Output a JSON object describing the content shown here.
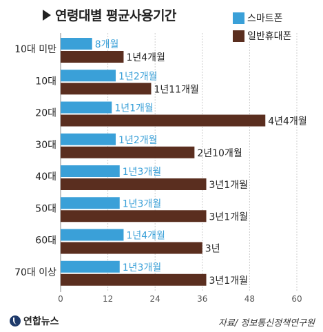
{
  "title": "연령대별 평균사용기간",
  "colors": {
    "smartphone": "#3aa0d8",
    "general": "#5a2e1f",
    "axis": "#888888"
  },
  "footer": {
    "logo_text": "연합뉴스",
    "source": "자료/ 정보통신정책연구원"
  },
  "chart_data": {
    "type": "bar",
    "orientation": "horizontal",
    "unit": "months",
    "categories": [
      "10대 미만",
      "10대",
      "20대",
      "30대",
      "40대",
      "50대",
      "60대",
      "70대 이상"
    ],
    "series": [
      {
        "name": "스마트폰",
        "values": [
          8,
          14,
          13,
          14,
          15,
          15,
          16,
          15
        ],
        "labels": [
          "8개월",
          "1년2개월",
          "1년1개월",
          "1년2개월",
          "1년3개월",
          "1년3개월",
          "1년4개월",
          "1년3개월"
        ]
      },
      {
        "name": "일반휴대폰",
        "values": [
          16,
          23,
          52,
          34,
          37,
          37,
          36,
          37
        ],
        "labels": [
          "1년4개월",
          "1년11개월",
          "4년4개월",
          "2년10개월",
          "3년1개월",
          "3년1개월",
          "3년",
          "3년1개월"
        ]
      }
    ],
    "xlim": [
      0,
      60
    ],
    "xticks": [
      0,
      12,
      24,
      36,
      48,
      60
    ],
    "grid": true,
    "legend": "top-right"
  }
}
